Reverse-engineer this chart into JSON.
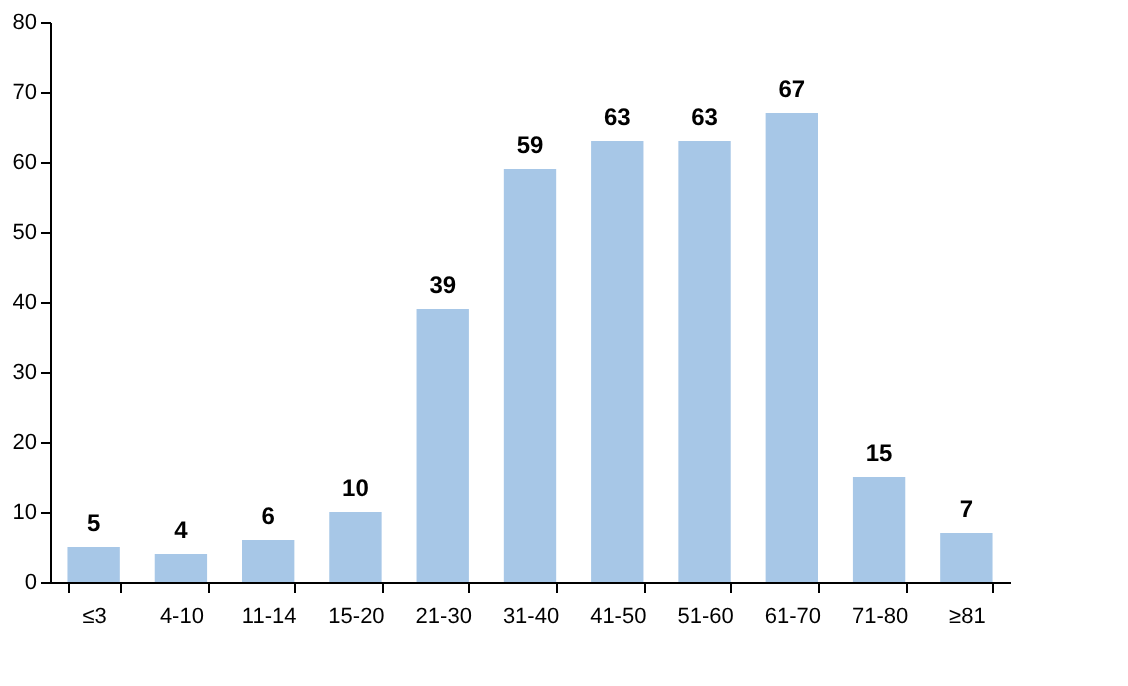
{
  "chart_data": {
    "type": "bar",
    "categories": [
      "≤3",
      "4-10",
      "11-14",
      "15-20",
      "21-30",
      "31-40",
      "41-50",
      "51-60",
      "61-70",
      "71-80",
      "≥81"
    ],
    "values": [
      5,
      4,
      6,
      10,
      39,
      59,
      63,
      63,
      67,
      15,
      7
    ],
    "color": "#a7c7e7",
    "ylim": [
      0,
      80
    ],
    "yticks": [
      0,
      10,
      20,
      30,
      40,
      50,
      60,
      70,
      80
    ],
    "grid": false,
    "data_labels": true
  }
}
